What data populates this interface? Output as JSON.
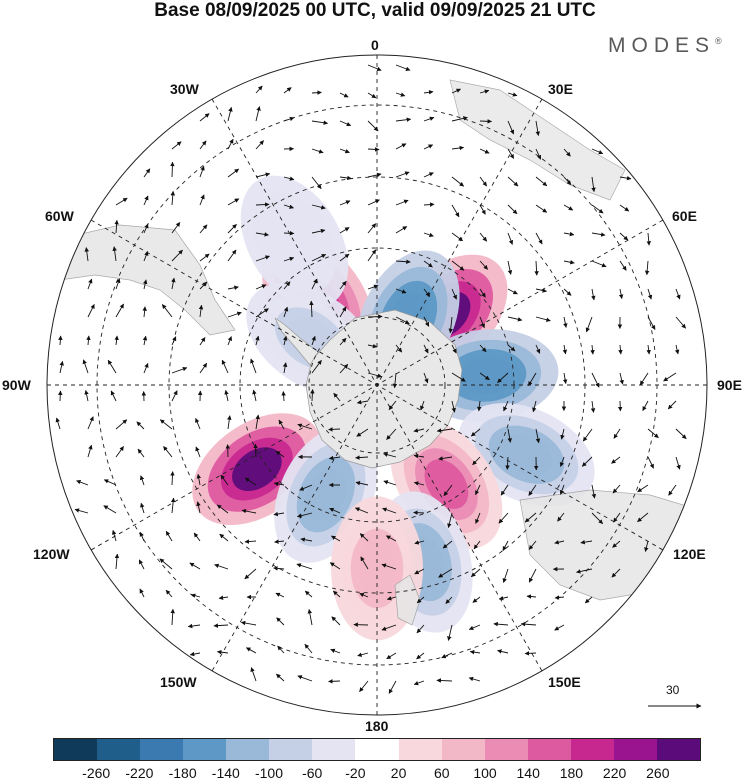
{
  "title": "Base 08/09/2025 00 UTC, valid 09/09/2025 21 UTC",
  "brand": {
    "name": "MODES",
    "mark": "®"
  },
  "meridian_labels": {
    "m0": "0",
    "m30E": "30E",
    "m60E": "60E",
    "m90E": "90E",
    "m120E": "120E",
    "m150E": "150E",
    "m180": "180",
    "m150W": "150W",
    "m120W": "120W",
    "m90W": "90W",
    "m60W": "60W",
    "m30W": "30W"
  },
  "reference_vector": {
    "value": "30"
  },
  "colorbar": {
    "colors": [
      "#0f3a5a",
      "#1f5e8a",
      "#3a7ab0",
      "#5d98c6",
      "#9ab8d8",
      "#c5d0e6",
      "#e4e4f2",
      "#ffffff",
      "#f8d8dc",
      "#f3b8c8",
      "#ea8cb4",
      "#de5aa0",
      "#c72890",
      "#9a1490",
      "#5c0c7a"
    ],
    "ticks": [
      "-260",
      "-220",
      "-180",
      "-140",
      "-100",
      "-60",
      "-20",
      "20",
      "60",
      "100",
      "140",
      "180",
      "220",
      "260"
    ]
  },
  "anomaly_cells": [
    {
      "lon": 45,
      "lat": -63,
      "value": 260,
      "shape": "ellipse"
    },
    {
      "lon": -35,
      "lat": -62,
      "value": 200,
      "shape": "ellipse"
    },
    {
      "lon": 25,
      "lat": -70,
      "value": -180,
      "shape": "ellipse"
    },
    {
      "lon": 85,
      "lat": -60,
      "value": -180,
      "shape": "ellipse"
    },
    {
      "lon": 115,
      "lat": -45,
      "value": -140,
      "shape": "ellipse"
    },
    {
      "lon": 145,
      "lat": -57,
      "value": 160,
      "shape": "ellipse"
    },
    {
      "lon": -125,
      "lat": -50,
      "value": 260,
      "shape": "ellipse"
    },
    {
      "lon": -155,
      "lat": -57,
      "value": -140,
      "shape": "ellipse"
    },
    {
      "lon": -55,
      "lat": -68,
      "value": -80,
      "shape": "ellipse"
    },
    {
      "lon": -30,
      "lat": -45,
      "value": -60,
      "shape": "ellipse"
    },
    {
      "lon": 165,
      "lat": -40,
      "value": -140,
      "shape": "ellipse"
    },
    {
      "lon": 180,
      "lat": -40,
      "value": 80,
      "shape": "ellipse"
    }
  ]
}
